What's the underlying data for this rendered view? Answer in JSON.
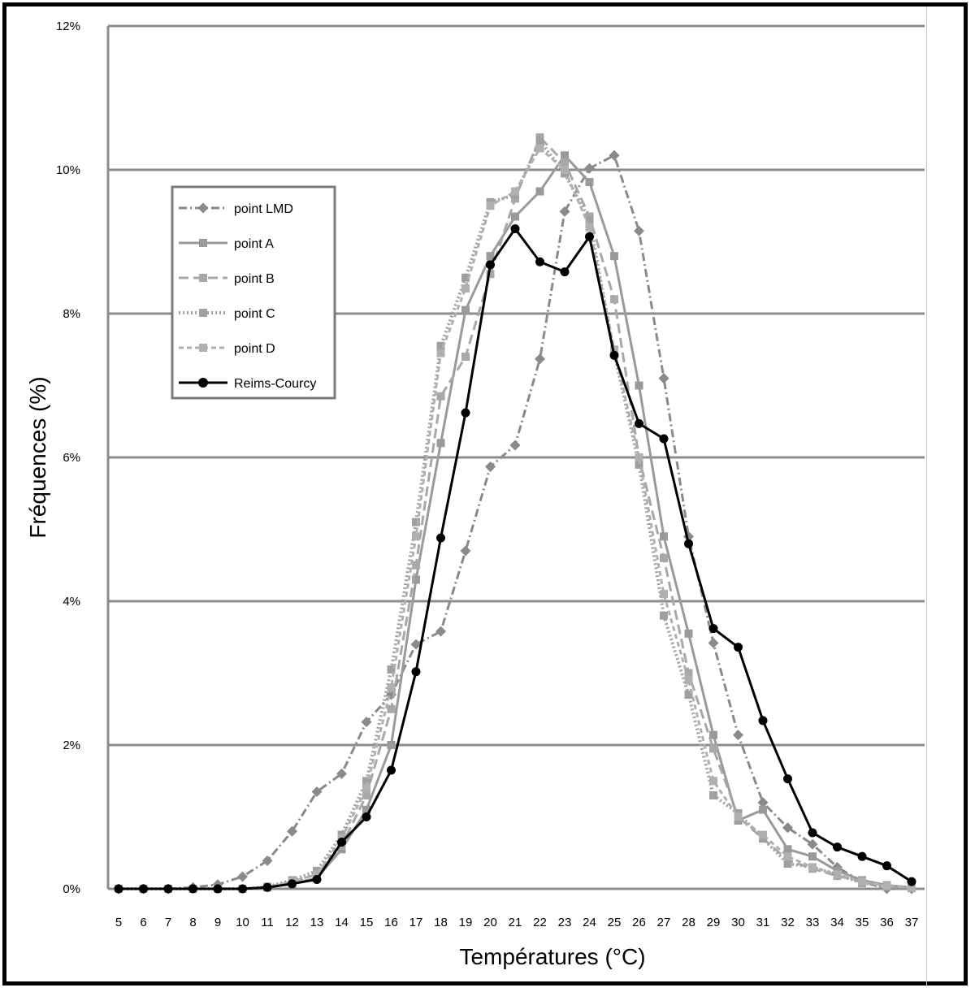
{
  "chart_data": {
    "type": "line",
    "xlabel": "Températures (°C)",
    "ylabel": "Fréquences (%)",
    "x": [
      5,
      6,
      7,
      8,
      9,
      10,
      11,
      12,
      13,
      14,
      15,
      16,
      17,
      18,
      19,
      20,
      21,
      22,
      23,
      24,
      25,
      26,
      27,
      28,
      29,
      30,
      31,
      32,
      33,
      34,
      35,
      36,
      37
    ],
    "ylim": [
      0,
      12
    ],
    "yticks": [
      0,
      2,
      4,
      6,
      8,
      10,
      12
    ],
    "ytick_labels": [
      "0%",
      "2%",
      "4%",
      "6%",
      "8%",
      "10%",
      "12%"
    ],
    "grid": true,
    "legend_position": "upper-left",
    "series": [
      {
        "name": "point LMD",
        "color": "#8a8a8a",
        "dash": "10,4,2,4",
        "marker": "diamond",
        "width": 3,
        "values": [
          0,
          0,
          0,
          0.02,
          0.06,
          0.17,
          0.39,
          0.8,
          1.35,
          1.6,
          2.32,
          2.7,
          3.4,
          3.58,
          4.7,
          5.87,
          6.17,
          7.37,
          9.42,
          10.02,
          10.2,
          9.15,
          7.1,
          4.9,
          3.42,
          2.14,
          1.2,
          0.85,
          0.62,
          0.3,
          0.1,
          0,
          0
        ]
      },
      {
        "name": "point A",
        "color": "#9a9a9a",
        "dash": "",
        "marker": "square",
        "width": 3,
        "values": [
          0,
          0,
          0,
          0,
          0,
          0,
          0.02,
          0.07,
          0.15,
          0.55,
          1.1,
          2.0,
          4.3,
          6.2,
          8.05,
          8.8,
          9.35,
          9.7,
          10.2,
          9.83,
          8.8,
          7.0,
          4.9,
          3.55,
          2.14,
          0.95,
          1.1,
          0.55,
          0.45,
          0.25,
          0.12,
          0.05,
          0.02
        ]
      },
      {
        "name": "point B",
        "color": "#a8a8a8",
        "dash": "12,6",
        "marker": "square",
        "width": 3,
        "values": [
          0,
          0,
          0,
          0,
          0,
          0,
          0.02,
          0.1,
          0.2,
          0.6,
          1.3,
          2.5,
          4.5,
          6.85,
          7.4,
          8.55,
          9.6,
          10.45,
          10.1,
          9.35,
          8.2,
          6.0,
          4.6,
          3.0,
          1.95,
          1.0,
          0.7,
          0.4,
          0.28,
          0.18,
          0.1,
          0.04,
          0.02
        ]
      },
      {
        "name": "point C",
        "color": "#a0a0a0",
        "dash": "2,3",
        "marker": "square",
        "width": 4,
        "values": [
          0,
          0,
          0,
          0,
          0,
          0,
          0.03,
          0.12,
          0.25,
          0.75,
          1.5,
          3.05,
          5.1,
          7.55,
          8.5,
          9.55,
          9.65,
          10.4,
          9.95,
          9.3,
          7.45,
          5.9,
          3.8,
          2.7,
          1.3,
          1.05,
          0.7,
          0.35,
          0.3,
          0.2,
          0.08,
          0.03,
          0.01
        ]
      },
      {
        "name": "point D",
        "color": "#b0b0b0",
        "dash": "6,4",
        "marker": "square",
        "width": 3,
        "values": [
          0,
          0,
          0,
          0,
          0,
          0,
          0.02,
          0.1,
          0.2,
          0.7,
          1.4,
          2.8,
          4.9,
          7.45,
          8.35,
          9.5,
          9.7,
          10.3,
          10.0,
          9.2,
          7.5,
          6.0,
          4.1,
          2.9,
          1.5,
          1.0,
          0.75,
          0.45,
          0.3,
          0.2,
          0.1,
          0.04,
          0.02
        ]
      },
      {
        "name": "Reims-Courcy",
        "color": "#000000",
        "dash": "",
        "marker": "circle",
        "width": 3,
        "values": [
          0,
          0,
          0,
          0,
          0,
          0,
          0.02,
          0.07,
          0.13,
          0.65,
          1.0,
          1.65,
          3.02,
          4.88,
          6.62,
          8.68,
          9.18,
          8.72,
          8.58,
          9.07,
          7.42,
          6.47,
          6.26,
          4.8,
          3.62,
          3.36,
          2.34,
          1.53,
          0.78,
          0.58,
          0.45,
          0.32,
          0.1
        ]
      }
    ]
  }
}
